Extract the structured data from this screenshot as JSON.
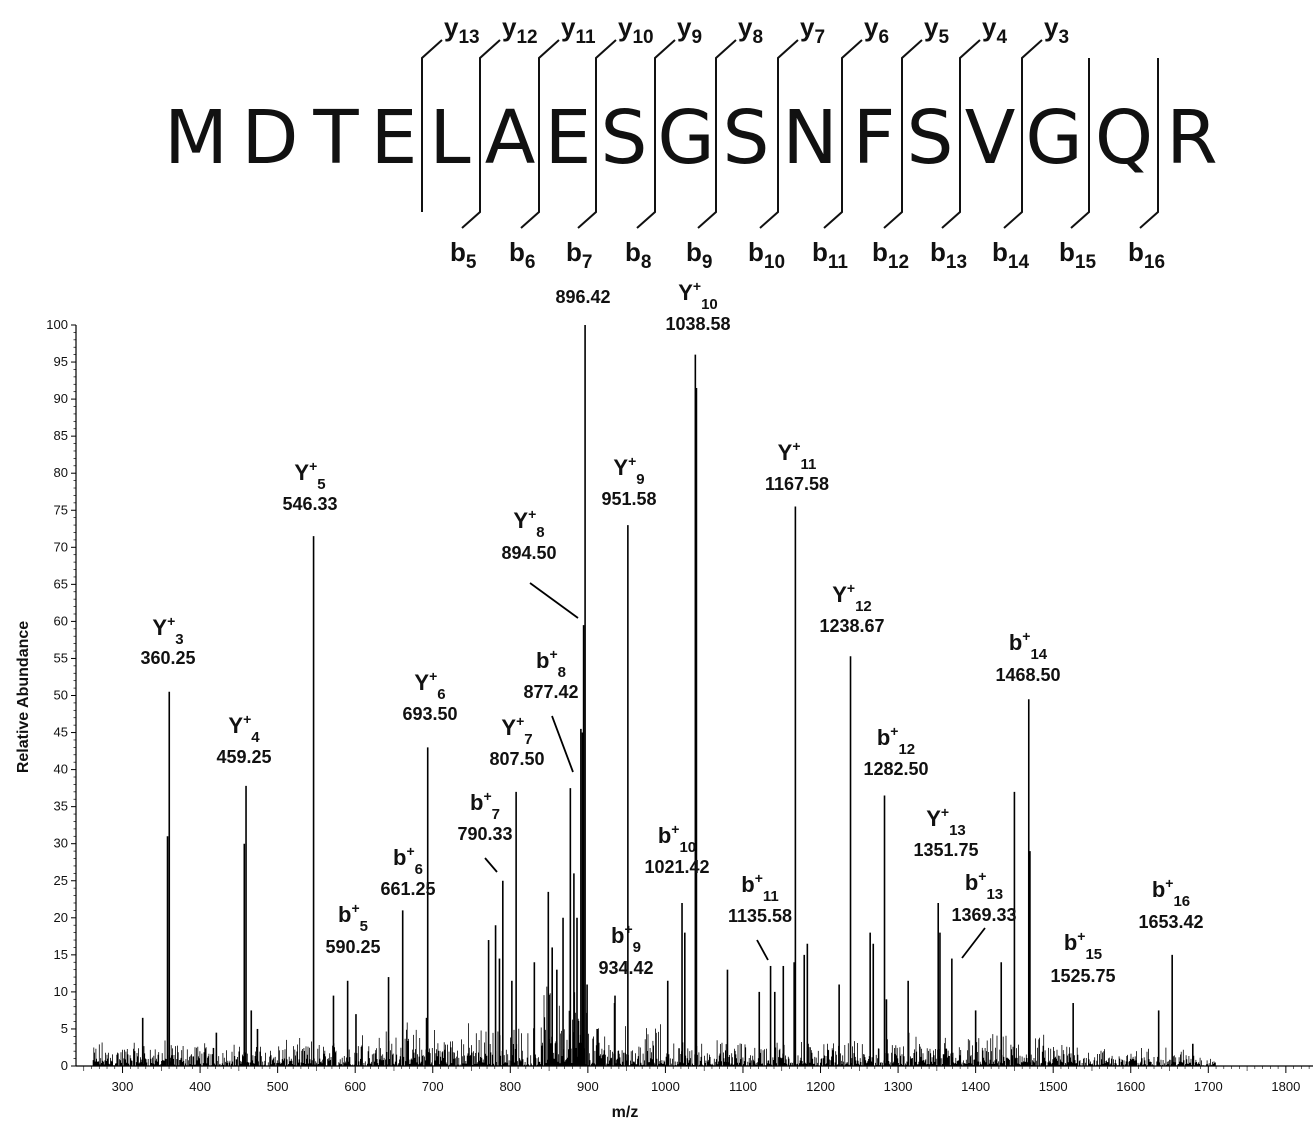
{
  "peptide": {
    "residues": [
      "M",
      "D",
      "T",
      "E",
      "L",
      "A",
      "E",
      "S",
      "G",
      "S",
      "N",
      "F",
      "S",
      "V",
      "G",
      "Q",
      "R"
    ],
    "y_ions": [
      {
        "ion": "y",
        "index": "13",
        "after_residue": 4
      },
      {
        "ion": "y",
        "index": "12",
        "after_residue": 5
      },
      {
        "ion": "y",
        "index": "11",
        "after_residue": 6
      },
      {
        "ion": "y",
        "index": "10",
        "after_residue": 7
      },
      {
        "ion": "y",
        "index": "9",
        "after_residue": 8
      },
      {
        "ion": "y",
        "index": "8",
        "after_residue": 9
      },
      {
        "ion": "y",
        "index": "7",
        "after_residue": 10
      },
      {
        "ion": "y",
        "index": "6",
        "after_residue": 11
      },
      {
        "ion": "y",
        "index": "5",
        "after_residue": 12
      },
      {
        "ion": "y",
        "index": "4",
        "after_residue": 13
      },
      {
        "ion": "y",
        "index": "3",
        "after_residue": 14
      }
    ],
    "b_ions": [
      {
        "ion": "b",
        "index": "5",
        "after_residue": 5
      },
      {
        "ion": "b",
        "index": "6",
        "after_residue": 6
      },
      {
        "ion": "b",
        "index": "7",
        "after_residue": 7
      },
      {
        "ion": "b",
        "index": "8",
        "after_residue": 8
      },
      {
        "ion": "b",
        "index": "9",
        "after_residue": 9
      },
      {
        "ion": "b",
        "index": "10",
        "after_residue": 10
      },
      {
        "ion": "b",
        "index": "11",
        "after_residue": 11
      },
      {
        "ion": "b",
        "index": "12",
        "after_residue": 12
      },
      {
        "ion": "b",
        "index": "13",
        "after_residue": 13
      },
      {
        "ion": "b",
        "index": "14",
        "after_residue": 14
      },
      {
        "ion": "b",
        "index": "15",
        "after_residue": 15
      },
      {
        "ion": "b",
        "index": "16",
        "after_residue": 16
      }
    ]
  },
  "chart_data": {
    "type": "bar",
    "xlabel": "m/z",
    "ylabel": "Relative Abundance",
    "xlim": [
      240,
      1835
    ],
    "ylim": [
      0,
      100
    ],
    "xticks": [
      300,
      400,
      500,
      600,
      700,
      800,
      900,
      1000,
      1100,
      1200,
      1300,
      1400,
      1500,
      1600,
      1700,
      1800
    ],
    "yticks": [
      0,
      5,
      10,
      15,
      20,
      25,
      30,
      35,
      40,
      45,
      50,
      55,
      60,
      65,
      70,
      75,
      80,
      85,
      90,
      95,
      100
    ],
    "bar_color": "#000000",
    "annotated_peaks": [
      {
        "mz": 360.25,
        "abundance": 50.5,
        "ion": "Y",
        "charge": "+",
        "index": "3",
        "label": "360.25"
      },
      {
        "mz": 459.25,
        "abundance": 37.8,
        "ion": "Y",
        "charge": "+",
        "index": "4",
        "label": "459.25"
      },
      {
        "mz": 546.33,
        "abundance": 71.5,
        "ion": "Y",
        "charge": "+",
        "index": "5",
        "label": "546.33"
      },
      {
        "mz": 590.25,
        "abundance": 11.5,
        "ion": "b",
        "charge": "+",
        "index": "5",
        "label": "590.25"
      },
      {
        "mz": 661.25,
        "abundance": 21.0,
        "ion": "b",
        "charge": "+",
        "index": "6",
        "label": "661.25"
      },
      {
        "mz": 693.5,
        "abundance": 43.0,
        "ion": "Y",
        "charge": "+",
        "index": "6",
        "label": "693.50"
      },
      {
        "mz": 790.33,
        "abundance": 25.0,
        "ion": "b",
        "charge": "+",
        "index": "7",
        "label": "790.33"
      },
      {
        "mz": 807.5,
        "abundance": 37.0,
        "ion": "Y",
        "charge": "+",
        "index": "7",
        "label": "807.50"
      },
      {
        "mz": 877.42,
        "abundance": 37.5,
        "ion": "b",
        "charge": "+",
        "index": "8",
        "label": "877.42"
      },
      {
        "mz": 894.5,
        "abundance": 59.5,
        "ion": "Y",
        "charge": "+",
        "index": "8",
        "label": "894.50"
      },
      {
        "mz": 896.42,
        "abundance": 100,
        "ion": "",
        "charge": "",
        "index": "",
        "label": "896.42"
      },
      {
        "mz": 934.42,
        "abundance": 8.5,
        "ion": "b",
        "charge": "+",
        "index": "9",
        "label": "934.42"
      },
      {
        "mz": 951.58,
        "abundance": 73.0,
        "ion": "Y",
        "charge": "+",
        "index": "9",
        "label": "951.58"
      },
      {
        "mz": 1021.42,
        "abundance": 22.0,
        "ion": "b",
        "charge": "+",
        "index": "10",
        "label": "1021.42"
      },
      {
        "mz": 1038.58,
        "abundance": 96.0,
        "ion": "Y",
        "charge": "+",
        "index": "10",
        "label": "1038.58"
      },
      {
        "mz": 1135.58,
        "abundance": 13.5,
        "ion": "b",
        "charge": "+",
        "index": "11",
        "label": "1135.58"
      },
      {
        "mz": 1167.58,
        "abundance": 75.5,
        "ion": "Y",
        "charge": "+",
        "index": "11",
        "label": "1167.58"
      },
      {
        "mz": 1238.67,
        "abundance": 55.3,
        "ion": "Y",
        "charge": "+",
        "index": "12",
        "label": "1238.67"
      },
      {
        "mz": 1282.5,
        "abundance": 36.5,
        "ion": "b",
        "charge": "+",
        "index": "12",
        "label": "1282.50"
      },
      {
        "mz": 1351.75,
        "abundance": 22.0,
        "ion": "Y",
        "charge": "+",
        "index": "13",
        "label": "1351.75"
      },
      {
        "mz": 1369.33,
        "abundance": 14.5,
        "ion": "b",
        "charge": "+",
        "index": "13",
        "label": "1369.33"
      },
      {
        "mz": 1468.5,
        "abundance": 49.5,
        "ion": "b",
        "charge": "+",
        "index": "14",
        "label": "1468.50"
      },
      {
        "mz": 1525.75,
        "abundance": 8.5,
        "ion": "b",
        "charge": "+",
        "index": "15",
        "label": "1525.75"
      },
      {
        "mz": 1653.42,
        "abundance": 15.0,
        "ion": "b",
        "charge": "+",
        "index": "16",
        "label": "1653.42"
      }
    ],
    "other_peaks": [
      {
        "mz": 326,
        "abundance": 6.5
      },
      {
        "mz": 358,
        "abundance": 31
      },
      {
        "mz": 421,
        "abundance": 4.5
      },
      {
        "mz": 457,
        "abundance": 30
      },
      {
        "mz": 466,
        "abundance": 7.5
      },
      {
        "mz": 474,
        "abundance": 5
      },
      {
        "mz": 572,
        "abundance": 9.5
      },
      {
        "mz": 601,
        "abundance": 7
      },
      {
        "mz": 643,
        "abundance": 12
      },
      {
        "mz": 692,
        "abundance": 6.5
      },
      {
        "mz": 772,
        "abundance": 17
      },
      {
        "mz": 781,
        "abundance": 19
      },
      {
        "mz": 786,
        "abundance": 14.5
      },
      {
        "mz": 802,
        "abundance": 11.5
      },
      {
        "mz": 831,
        "abundance": 14
      },
      {
        "mz": 849,
        "abundance": 23.5
      },
      {
        "mz": 854,
        "abundance": 16
      },
      {
        "mz": 860,
        "abundance": 13
      },
      {
        "mz": 868,
        "abundance": 20
      },
      {
        "mz": 882,
        "abundance": 26
      },
      {
        "mz": 886,
        "abundance": 20
      },
      {
        "mz": 891,
        "abundance": 45.5
      },
      {
        "mz": 893,
        "abundance": 45
      },
      {
        "mz": 899,
        "abundance": 11
      },
      {
        "mz": 912,
        "abundance": 5
      },
      {
        "mz": 935,
        "abundance": 9.5
      },
      {
        "mz": 1003,
        "abundance": 11.5
      },
      {
        "mz": 1025,
        "abundance": 18
      },
      {
        "mz": 1040,
        "abundance": 91.5
      },
      {
        "mz": 1080,
        "abundance": 13
      },
      {
        "mz": 1121,
        "abundance": 10
      },
      {
        "mz": 1141,
        "abundance": 10
      },
      {
        "mz": 1152,
        "abundance": 13.5
      },
      {
        "mz": 1166,
        "abundance": 14
      },
      {
        "mz": 1179,
        "abundance": 15
      },
      {
        "mz": 1183,
        "abundance": 16.5
      },
      {
        "mz": 1224,
        "abundance": 11
      },
      {
        "mz": 1264,
        "abundance": 18
      },
      {
        "mz": 1268,
        "abundance": 16.5
      },
      {
        "mz": 1285,
        "abundance": 9
      },
      {
        "mz": 1313,
        "abundance": 11.5
      },
      {
        "mz": 1354,
        "abundance": 18
      },
      {
        "mz": 1400,
        "abundance": 7.5
      },
      {
        "mz": 1433,
        "abundance": 14
      },
      {
        "mz": 1450,
        "abundance": 37
      },
      {
        "mz": 1470,
        "abundance": 29
      },
      {
        "mz": 1636,
        "abundance": 7.5
      },
      {
        "mz": 1680,
        "abundance": 3
      }
    ]
  }
}
